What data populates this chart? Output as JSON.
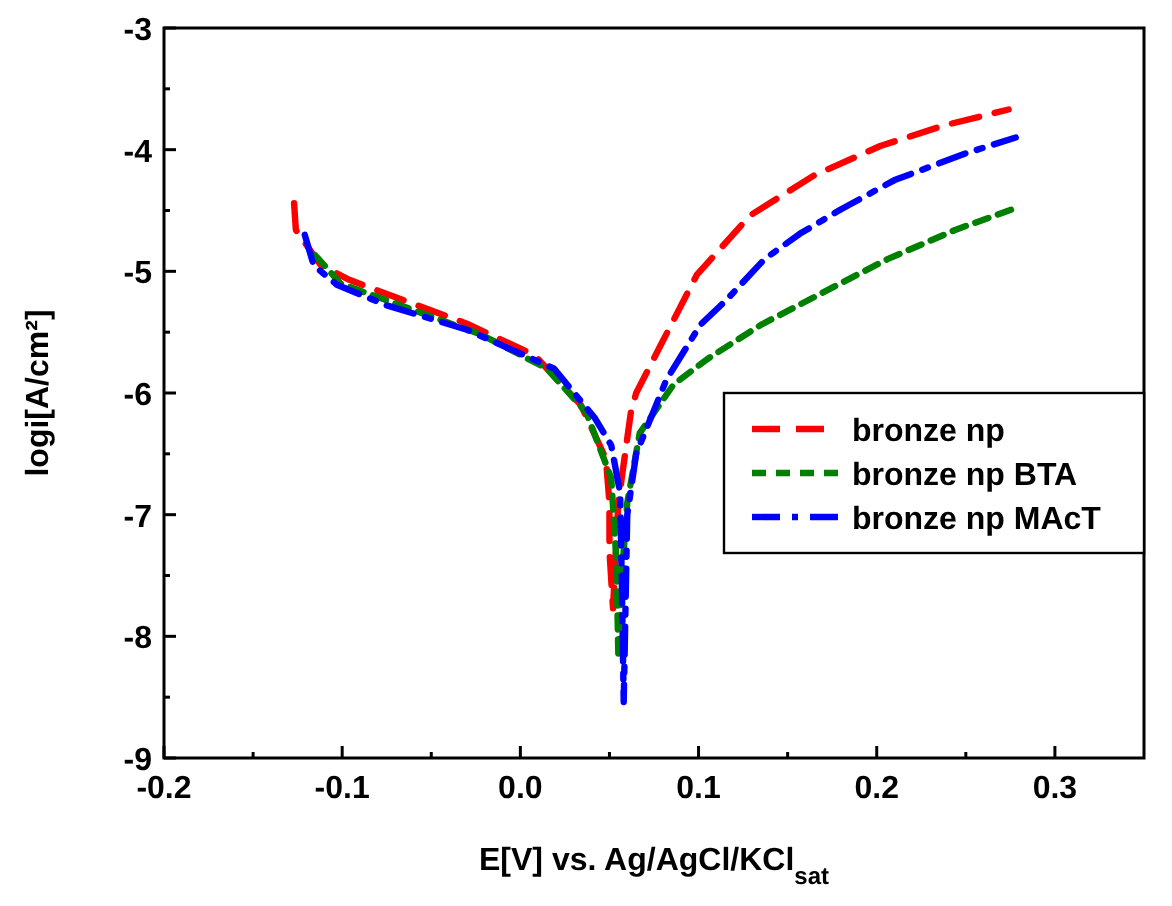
{
  "chart_data": {
    "type": "line",
    "xlabel": "E[V] vs. Ag/AgCl/KCl$_{sat}$",
    "ylabel": "logi[A/cm²]",
    "xlim": [
      -0.2,
      0.35
    ],
    "ylim": [
      -9,
      -3
    ],
    "xticks": [
      -0.2,
      {
        "value": -0.15,
        "label": null
      },
      -0.1,
      {
        "value": -0.05,
        "label": null
      },
      {
        "value": 0,
        "label": "0.0"
      },
      {
        "value": 0.05,
        "label": null
      },
      0.1,
      {
        "value": 0.15,
        "label": null
      },
      0.2,
      {
        "value": 0.25,
        "label": null
      },
      0.3
    ],
    "yticks": [
      -9,
      {
        "value": -8.5,
        "label": null
      },
      -8,
      {
        "value": -7.5,
        "label": null
      },
      -7,
      {
        "value": -6.5,
        "label": null
      },
      -6,
      {
        "value": -5.5,
        "label": null
      },
      -5,
      {
        "value": -4.5,
        "label": null
      },
      -4,
      {
        "value": -3.5,
        "label": null
      },
      -3
    ],
    "grid": false,
    "legend": "right",
    "series": [
      {
        "name": "bronze np",
        "color": "#ff0000",
        "line_style": "dashed",
        "x": [
          -0.127,
          -0.126,
          -0.112,
          -0.096,
          -0.067,
          -0.03,
          0.008,
          0.034,
          0.048,
          0.05,
          0.05,
          0.052,
          0.055,
          0.062,
          0.065,
          0.079,
          0.099,
          0.129,
          0.165,
          0.202,
          0.238,
          0.274
        ],
        "values": [
          -4.44,
          -4.66,
          -4.95,
          -5.07,
          -5.23,
          -5.43,
          -5.69,
          -6.1,
          -6.54,
          -6.9,
          -7.3,
          -7.77,
          -6.9,
          -6.16,
          -6.0,
          -5.6,
          -5.03,
          -4.54,
          -4.21,
          -3.97,
          -3.8,
          -3.67
        ]
      },
      {
        "name": "bronze np BTA",
        "color": "#008000",
        "line_style": "dotted",
        "x": [
          -0.115,
          -0.101,
          -0.071,
          -0.022,
          0.015,
          0.037,
          0.051,
          0.054,
          0.055,
          0.057,
          0.06,
          0.067,
          0.086,
          0.105,
          0.135,
          0.169,
          0.206,
          0.244,
          0.278
        ],
        "values": [
          -4.87,
          -5.1,
          -5.26,
          -5.52,
          -5.8,
          -6.16,
          -6.7,
          -7.4,
          -8.18,
          -7.5,
          -6.9,
          -6.33,
          -5.93,
          -5.72,
          -5.44,
          -5.18,
          -4.9,
          -4.66,
          -4.48
        ]
      },
      {
        "name": "bronze np MAcT",
        "color": "#0000ff",
        "line_style": "dashdot",
        "x": [
          -0.121,
          -0.116,
          -0.103,
          -0.075,
          -0.03,
          0.019,
          0.042,
          0.051,
          0.056,
          0.057,
          0.058,
          0.06,
          0.065,
          0.082,
          0.101,
          0.116,
          0.137,
          0.157,
          0.18,
          0.21,
          0.25,
          0.278
        ],
        "values": [
          -4.7,
          -4.95,
          -5.11,
          -5.28,
          -5.48,
          -5.8,
          -6.21,
          -6.43,
          -6.82,
          -7.6,
          -8.54,
          -7.0,
          -6.5,
          -5.89,
          -5.44,
          -5.23,
          -4.9,
          -4.69,
          -4.49,
          -4.25,
          -4.03,
          -3.9
        ]
      }
    ]
  }
}
